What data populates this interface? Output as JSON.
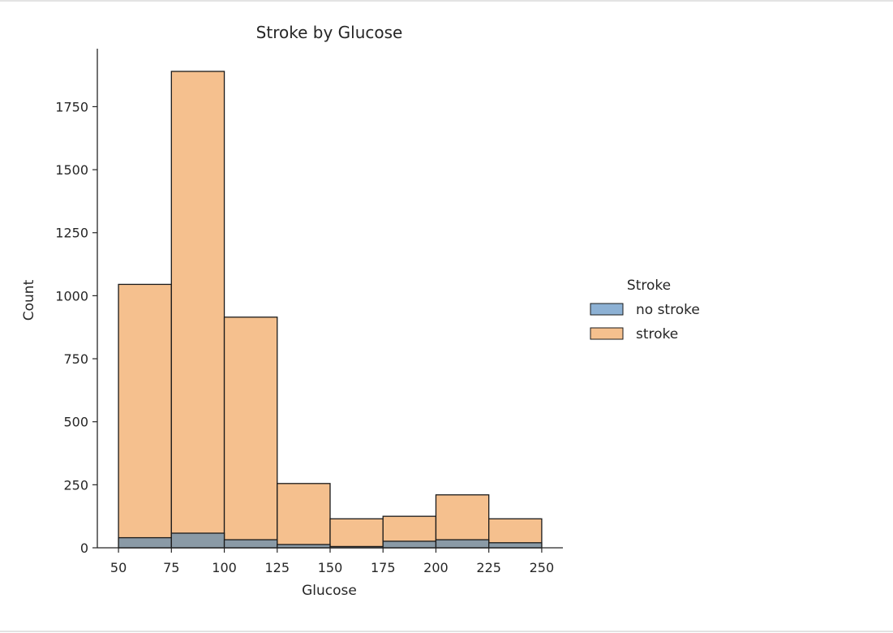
{
  "chart_data": {
    "type": "histogram",
    "title": "Stroke by Glucose",
    "xlabel": "Glucose",
    "ylabel": "Count",
    "xlim": [
      40,
      260
    ],
    "ylim": [
      0,
      1980
    ],
    "xticks": [
      50,
      75,
      100,
      125,
      150,
      175,
      200,
      225,
      250
    ],
    "yticks": [
      0,
      250,
      500,
      750,
      1000,
      1250,
      1500,
      1750
    ],
    "bins": [
      [
        50,
        75
      ],
      [
        75,
        100
      ],
      [
        100,
        125
      ],
      [
        125,
        150
      ],
      [
        150,
        175
      ],
      [
        175,
        200
      ],
      [
        200,
        225
      ],
      [
        225,
        250
      ]
    ],
    "series": [
      {
        "name": "no stroke",
        "color": "#8a9aa6",
        "legend_color": "#8db1d4",
        "values": [
          40,
          58,
          32,
          13,
          5,
          26,
          32,
          20
        ]
      },
      {
        "name": "stroke",
        "color": "#f5c08e",
        "legend_color": "#f5c08e",
        "values": [
          1045,
          1890,
          915,
          255,
          115,
          125,
          210,
          115
        ]
      }
    ],
    "legend": {
      "title": "Stroke",
      "position": "right",
      "entries": [
        "no stroke",
        "stroke"
      ]
    },
    "grid": false
  }
}
